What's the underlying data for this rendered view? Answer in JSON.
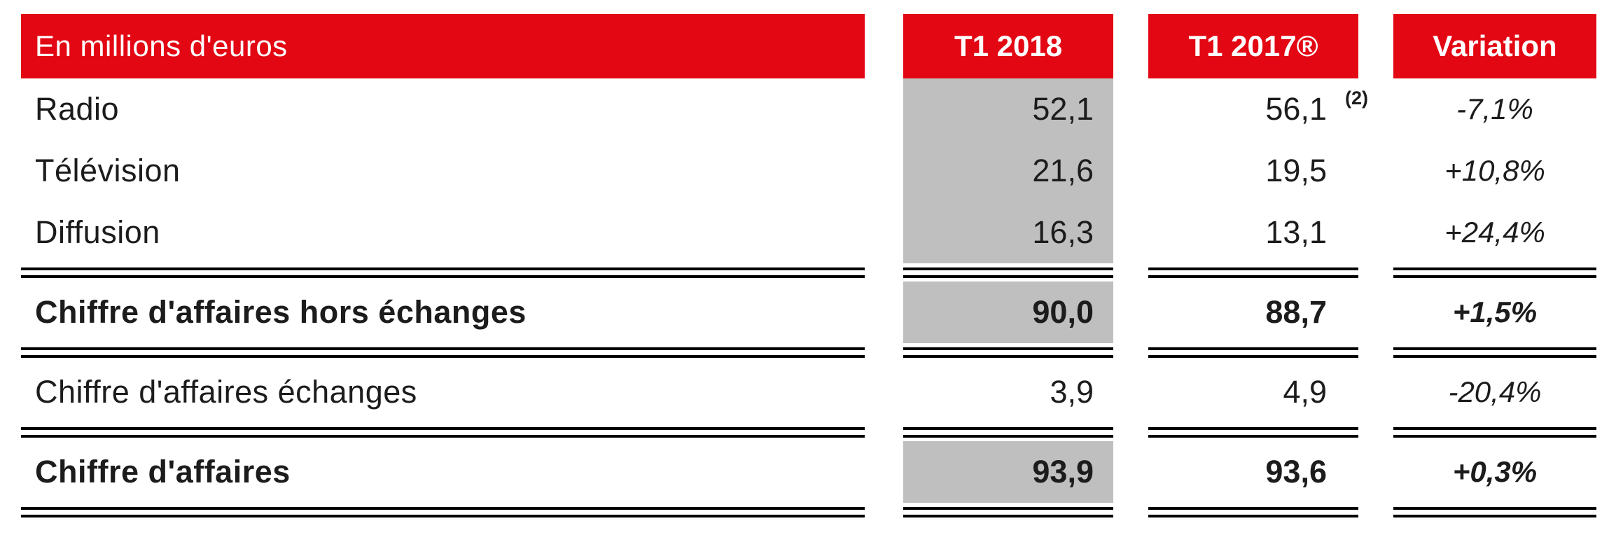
{
  "table": {
    "header": {
      "label": "En millions d'euros",
      "col_t1_2018": "T1 2018",
      "col_t1_2017": "T1 2017®",
      "col_variation": "Variation"
    },
    "rows": [
      {
        "label": "Radio",
        "t1_2018": "52,1",
        "t1_2017": "56,1",
        "footnote": "(2)",
        "variation": "-7,1%"
      },
      {
        "label": "Télévision",
        "t1_2018": "21,6",
        "t1_2017": "19,5",
        "variation": "+10,8%"
      },
      {
        "label": "Diffusion",
        "t1_2018": "16,3",
        "t1_2017": "13,1",
        "variation": "+24,4%"
      },
      {
        "label": "Chiffre d'affaires hors échanges",
        "t1_2018": "90,0",
        "t1_2017": "88,7",
        "variation": "+1,5%"
      },
      {
        "label": "Chiffre d'affaires échanges",
        "t1_2018": "3,9",
        "t1_2017": "4,9",
        "variation": "-20,4%"
      },
      {
        "label": "Chiffre d'affaires",
        "t1_2018": "93,9",
        "t1_2017": "93,6",
        "variation": "+0,3%"
      }
    ],
    "colors": {
      "header_red": "#E30613",
      "column_gray": "#BFBFBF"
    }
  },
  "chart_data": {
    "type": "table",
    "title": "En millions d'euros",
    "columns": [
      "En millions d'euros",
      "T1 2018",
      "T1 2017®",
      "Variation"
    ],
    "rows": [
      [
        "Radio",
        52.1,
        56.1,
        "-7,1%"
      ],
      [
        "Télévision",
        21.6,
        19.5,
        "+10,8%"
      ],
      [
        "Diffusion",
        16.3,
        13.1,
        "+24,4%"
      ],
      [
        "Chiffre d'affaires hors échanges",
        90.0,
        88.7,
        "+1,5%"
      ],
      [
        "Chiffre d'affaires échanges",
        3.9,
        4.9,
        "-20,4%"
      ],
      [
        "Chiffre d'affaires",
        93.9,
        93.6,
        "+0,3%"
      ]
    ],
    "footnote_markers": [
      {
        "row": "Radio",
        "column": "T1 2017®",
        "marker": "(2)"
      }
    ],
    "layout": {
      "highlighted_column": "T1 2018",
      "bold_rows": [
        "Chiffre d'affaires hors échanges",
        "Chiffre d'affaires"
      ],
      "double_rules": "above and below each total row and at table bottom"
    }
  }
}
